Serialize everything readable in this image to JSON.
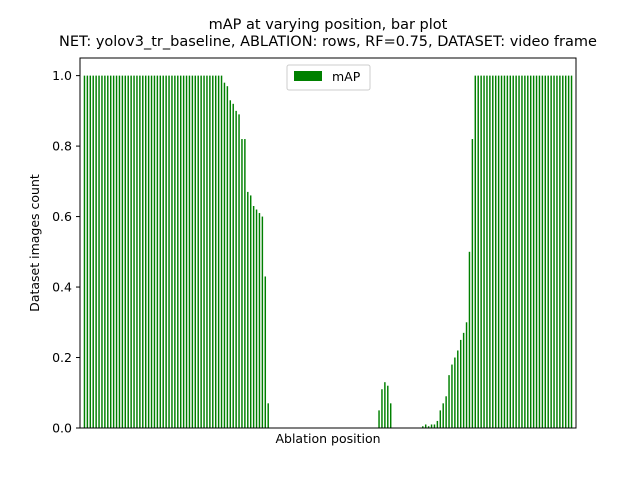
{
  "chart_data": {
    "type": "bar",
    "title": "mAP at varying position, bar plot",
    "subtitle": "NET: yolov3_tr_baseline, ABLATION: rows, RF=0.75, DATASET: video frame",
    "xlabel": "Ablation position",
    "ylabel": "Dataset images count",
    "ylim": [
      0,
      1.05
    ],
    "yticks": [
      "0.0",
      "0.2",
      "0.4",
      "0.6",
      "0.8",
      "1.0"
    ],
    "grid": false,
    "legend_position": "top-center",
    "series": [
      {
        "name": "mAP",
        "color": "#008000",
        "values": [
          1.0,
          1.0,
          1.0,
          1.0,
          1.0,
          1.0,
          1.0,
          1.0,
          1.0,
          1.0,
          1.0,
          1.0,
          1.0,
          1.0,
          1.0,
          1.0,
          1.0,
          1.0,
          1.0,
          1.0,
          1.0,
          1.0,
          1.0,
          1.0,
          1.0,
          1.0,
          1.0,
          1.0,
          1.0,
          1.0,
          1.0,
          1.0,
          1.0,
          1.0,
          1.0,
          1.0,
          1.0,
          1.0,
          1.0,
          1.0,
          1.0,
          1.0,
          1.0,
          1.0,
          1.0,
          1.0,
          1.0,
          1.0,
          0.98,
          0.97,
          0.93,
          0.92,
          0.9,
          0.89,
          0.82,
          0.82,
          0.67,
          0.66,
          0.63,
          0.62,
          0.61,
          0.6,
          0.43,
          0.07,
          0.0,
          0.0,
          0.0,
          0.0,
          0.0,
          0.0,
          0.0,
          0.0,
          0.0,
          0.0,
          0.0,
          0.0,
          0.0,
          0.0,
          0.0,
          0.0,
          0.0,
          0.0,
          0.0,
          0.0,
          0.0,
          0.0,
          0.0,
          0.0,
          0.0,
          0.0,
          0.0,
          0.0,
          0.0,
          0.0,
          0.0,
          0.0,
          0.0,
          0.0,
          0.0,
          0.0,
          0.0,
          0.05,
          0.11,
          0.13,
          0.12,
          0.07,
          0.0,
          0.0,
          0.0,
          0.0,
          0.0,
          0.0,
          0.0,
          0.0,
          0.0,
          0.0,
          0.005,
          0.01,
          0.005,
          0.01,
          0.01,
          0.02,
          0.05,
          0.07,
          0.09,
          0.15,
          0.18,
          0.2,
          0.22,
          0.25,
          0.27,
          0.3,
          0.5,
          0.82,
          1.0,
          1.0,
          1.0,
          1.0,
          1.0,
          1.0,
          1.0,
          1.0,
          1.0,
          1.0,
          1.0,
          1.0,
          1.0,
          1.0,
          1.0,
          1.0,
          1.0,
          1.0,
          1.0,
          1.0,
          1.0,
          1.0,
          1.0,
          1.0,
          1.0,
          1.0,
          1.0,
          1.0,
          1.0,
          1.0,
          1.0,
          1.0,
          1.0,
          1.0
        ]
      }
    ]
  }
}
